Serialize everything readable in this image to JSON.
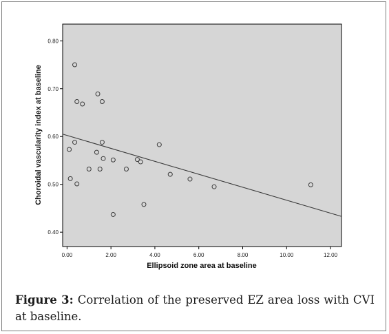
{
  "chart_data": {
    "type": "scatter",
    "title": "",
    "xlabel": "Ellipsoid zone area at baseline",
    "ylabel": "Choroidal vascularity index at baseline",
    "xlim": [
      -0.2,
      12.5
    ],
    "ylim": [
      0.37,
      0.835
    ],
    "xticks": [
      0,
      2,
      4,
      6,
      8,
      10,
      12
    ],
    "xtick_labels": [
      "0.00",
      "2.00",
      "4.00",
      "6.00",
      "8.00",
      "10.00",
      "12.00"
    ],
    "yticks": [
      0.4,
      0.5,
      0.6,
      0.7,
      0.8
    ],
    "ytick_labels": [
      "0.40",
      "0.50",
      "0.60",
      "0.70",
      "0.80"
    ],
    "grid": false,
    "background": "#d6d6d6",
    "points": [
      {
        "x": 0.35,
        "y": 0.75
      },
      {
        "x": 0.45,
        "y": 0.673
      },
      {
        "x": 0.7,
        "y": 0.668
      },
      {
        "x": 1.4,
        "y": 0.689
      },
      {
        "x": 1.6,
        "y": 0.673
      },
      {
        "x": 0.1,
        "y": 0.573
      },
      {
        "x": 0.35,
        "y": 0.588
      },
      {
        "x": 1.35,
        "y": 0.567
      },
      {
        "x": 1.6,
        "y": 0.588
      },
      {
        "x": 1.65,
        "y": 0.554
      },
      {
        "x": 1.0,
        "y": 0.532
      },
      {
        "x": 1.5,
        "y": 0.532
      },
      {
        "x": 2.1,
        "y": 0.551
      },
      {
        "x": 0.15,
        "y": 0.512
      },
      {
        "x": 0.45,
        "y": 0.501
      },
      {
        "x": 2.7,
        "y": 0.532
      },
      {
        "x": 3.2,
        "y": 0.552
      },
      {
        "x": 3.35,
        "y": 0.547
      },
      {
        "x": 4.2,
        "y": 0.583
      },
      {
        "x": 4.7,
        "y": 0.521
      },
      {
        "x": 5.6,
        "y": 0.511
      },
      {
        "x": 6.7,
        "y": 0.495
      },
      {
        "x": 3.5,
        "y": 0.458
      },
      {
        "x": 2.1,
        "y": 0.437
      },
      {
        "x": 11.1,
        "y": 0.499
      }
    ],
    "fit_line": {
      "x": [
        -0.2,
        12.5
      ],
      "y": [
        0.605,
        0.433
      ]
    }
  },
  "caption": {
    "label": "Figure 3:",
    "text": " Correlation of the preserved EZ area loss with CVI at baseline."
  }
}
